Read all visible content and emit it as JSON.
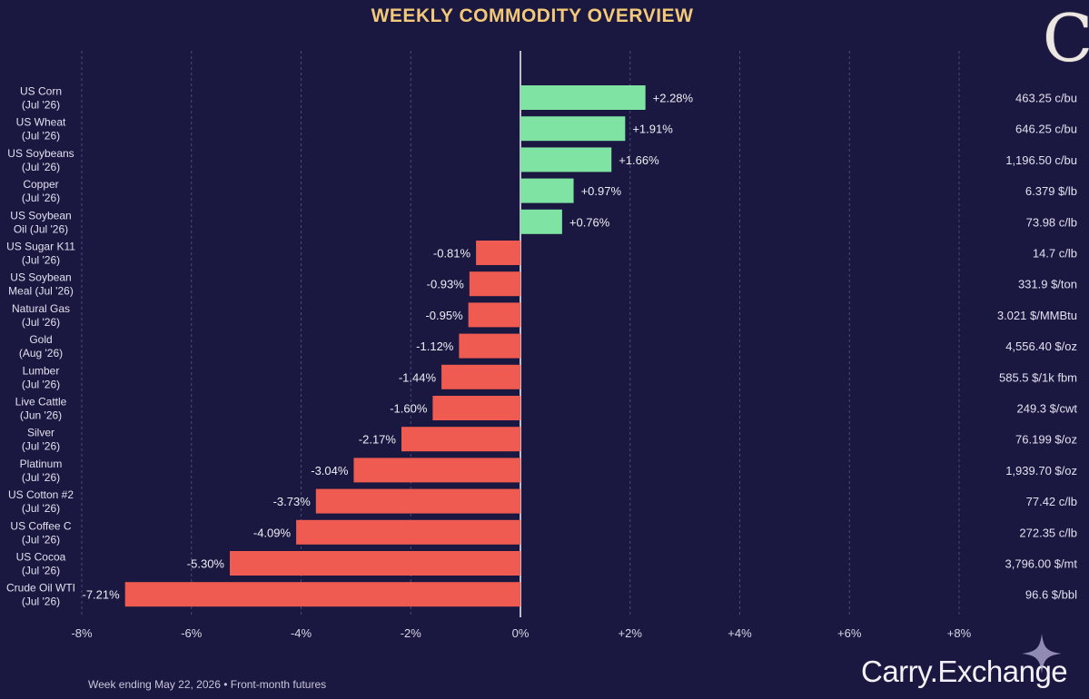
{
  "title": "WEEKLY COMMODITY OVERVIEW",
  "logo_letter": "C",
  "footnote": "Week ending May 22, 2026 • Front-month futures",
  "brand": "Carry.Exchange",
  "colors": {
    "background": "#1a1740",
    "positive": "#7fe3a3",
    "negative": "#ef5b50",
    "title": "#f2c879",
    "grid": "#4a4a7a"
  },
  "chart_data": {
    "type": "bar",
    "orientation": "horizontal",
    "xlim": [
      -8,
      8
    ],
    "xticks": [
      "-8%",
      "-6%",
      "-4%",
      "-2%",
      "0%",
      "+2%",
      "+4%",
      "+6%",
      "+8%"
    ],
    "grid": true,
    "categories": [
      [
        "US Corn",
        "(Jul '26)"
      ],
      [
        "US Wheat",
        "(Jul '26)"
      ],
      [
        "US Soybeans",
        "(Jul '26)"
      ],
      [
        "Copper",
        "(Jul '26)"
      ],
      [
        "US Soybean",
        "Oil (Jul '26)"
      ],
      [
        "US Sugar K11",
        "(Jul '26)"
      ],
      [
        "US Soybean",
        "Meal (Jul '26)"
      ],
      [
        "Natural Gas",
        "(Jul '26)"
      ],
      [
        "Gold",
        "(Aug '26)"
      ],
      [
        "Lumber",
        "(Jul '26)"
      ],
      [
        "Live Cattle",
        "(Jun '26)"
      ],
      [
        "Silver",
        "(Jul '26)"
      ],
      [
        "Platinum",
        "(Jul '26)"
      ],
      [
        "US Cotton #2",
        "(Jul '26)"
      ],
      [
        "US Coffee C",
        "(Jul '26)"
      ],
      [
        "US Cocoa",
        "(Jul '26)"
      ],
      [
        "Crude Oil WTI",
        "(Jul '26)"
      ]
    ],
    "values": [
      2.28,
      1.91,
      1.66,
      0.97,
      0.76,
      -0.81,
      -0.93,
      -0.95,
      -1.12,
      -1.44,
      -1.6,
      -2.17,
      -3.04,
      -3.73,
      -4.09,
      -5.3,
      -7.21
    ],
    "value_labels": [
      "+2.28%",
      "+1.91%",
      "+1.66%",
      "+0.97%",
      "+0.76%",
      "-0.81%",
      "-0.93%",
      "-0.95%",
      "-1.12%",
      "-1.44%",
      "-1.60%",
      "-2.17%",
      "-3.04%",
      "-3.73%",
      "-4.09%",
      "-5.30%",
      "-7.21%"
    ],
    "prices": [
      "463.25 c/bu",
      "646.25 c/bu",
      "1,196.50 c/bu",
      "6.379 $/lb",
      "73.98 c/lb",
      "14.7 c/lb",
      "331.9 $/ton",
      "3.021 $/MMBtu",
      "4,556.40 $/oz",
      "585.5 $/1k fbm",
      "249.3 $/cwt",
      "76.199 $/oz",
      "1,939.70 $/oz",
      "77.42 c/lb",
      "272.35 c/lb",
      "3,796.00 $/mt",
      "96.6 $/bbl"
    ]
  }
}
